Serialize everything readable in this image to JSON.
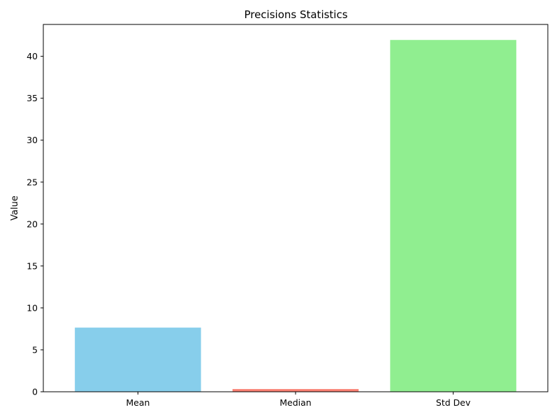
{
  "chart_data": {
    "type": "bar",
    "title": "Precisions Statistics",
    "xlabel": "",
    "ylabel": "Value",
    "categories": [
      "Mean",
      "Median",
      "Std Dev"
    ],
    "values": [
      7.65,
      0.32,
      41.95
    ],
    "colors": [
      "#87ceeb",
      "#fa8072",
      "#90ee90"
    ],
    "ylim": [
      0,
      43.8
    ],
    "yticks": [
      0,
      5,
      10,
      15,
      20,
      25,
      30,
      35,
      40
    ],
    "grid": false,
    "legend": "none"
  }
}
